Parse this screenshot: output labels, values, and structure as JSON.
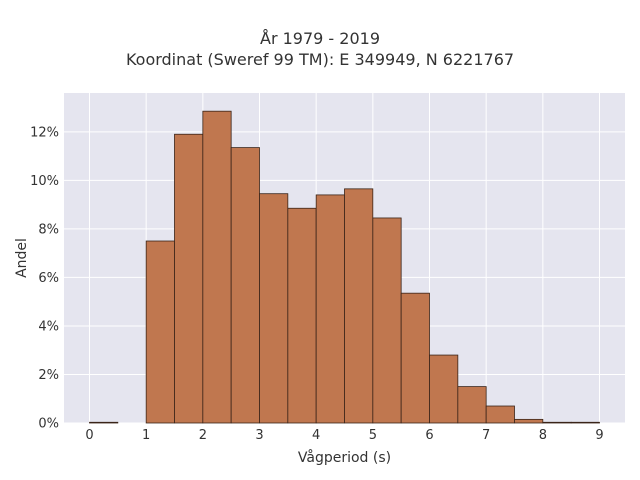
{
  "chart_data": {
    "type": "bar",
    "title": [
      "År 1979 - 2019",
      "Koordinat (Sweref 99 TM): E 349949, N 6221767"
    ],
    "xlabel": "Vågperiod (s)",
    "ylabel": "Andel",
    "bin_width": 0.5,
    "bins": [
      {
        "x0": 0.0,
        "x1": 0.5,
        "value": 0.03
      },
      {
        "x0": 0.5,
        "x1": 1.0,
        "value": 0.0
      },
      {
        "x0": 1.0,
        "x1": 1.5,
        "value": 7.5
      },
      {
        "x0": 1.5,
        "x1": 2.0,
        "value": 11.9
      },
      {
        "x0": 2.0,
        "x1": 2.5,
        "value": 12.85
      },
      {
        "x0": 2.5,
        "x1": 3.0,
        "value": 11.35
      },
      {
        "x0": 3.0,
        "x1": 3.5,
        "value": 9.45
      },
      {
        "x0": 3.5,
        "x1": 4.0,
        "value": 8.85
      },
      {
        "x0": 4.0,
        "x1": 4.5,
        "value": 9.4
      },
      {
        "x0": 4.5,
        "x1": 5.0,
        "value": 9.65
      },
      {
        "x0": 5.0,
        "x1": 5.5,
        "value": 8.45
      },
      {
        "x0": 5.5,
        "x1": 6.0,
        "value": 5.35
      },
      {
        "x0": 6.0,
        "x1": 6.5,
        "value": 2.8
      },
      {
        "x0": 6.5,
        "x1": 7.0,
        "value": 1.5
      },
      {
        "x0": 7.0,
        "x1": 7.5,
        "value": 0.7
      },
      {
        "x0": 7.5,
        "x1": 8.0,
        "value": 0.15
      },
      {
        "x0": 8.0,
        "x1": 8.5,
        "value": 0.03
      },
      {
        "x0": 8.5,
        "x1": 9.0,
        "value": 0.03
      }
    ],
    "xlim": [
      -0.45,
      9.45
    ],
    "ylim": [
      0,
      13.6
    ],
    "xticks": [
      0,
      1,
      2,
      3,
      4,
      5,
      6,
      7,
      8,
      9
    ],
    "yticks": [
      0,
      2,
      4,
      6,
      8,
      10,
      12
    ],
    "ytick_suffix": "%",
    "grid": true,
    "colors": {
      "bar_fill": "#c0774f",
      "bar_edge": "#3a2418",
      "plot_bg": "#e5e5ef",
      "grid": "#ffffff"
    }
  }
}
